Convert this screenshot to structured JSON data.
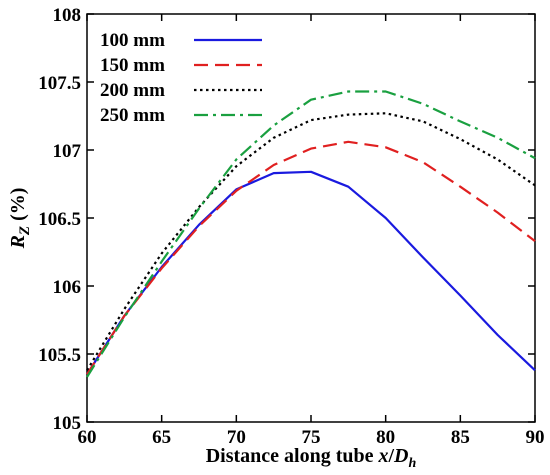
{
  "chart_data": {
    "type": "line",
    "xlabel": "Distance along tube x/D",
    "xlabel_parts": {
      "prefix": "Distance along tube ",
      "var_x": "x",
      "slash": "/",
      "var_d": "D",
      "subscript": "h"
    },
    "ylabel": "R_Z (%)",
    "ylabel_parts": {
      "var": "R",
      "subscript": "Z",
      "unit": " (%)"
    },
    "xlim": [
      60,
      90
    ],
    "ylim": [
      105,
      108
    ],
    "x_ticks": [
      60,
      65,
      70,
      75,
      80,
      85,
      90
    ],
    "y_ticks": [
      105,
      105.5,
      106,
      106.5,
      107,
      107.5,
      108
    ],
    "x_tick_labels": [
      "60",
      "65",
      "70",
      "75",
      "80",
      "85",
      "90"
    ],
    "y_tick_labels": [
      "105",
      "105.5",
      "106",
      "106.5",
      "107",
      "107.5",
      "108"
    ],
    "grid": false,
    "legend_position": "top-left",
    "series": [
      {
        "name": "100 mm",
        "color": "#1a1adf",
        "style": "solid",
        "x": [
          60,
          62.5,
          65,
          67.5,
          70,
          72.5,
          75,
          77.5,
          80,
          82.5,
          85,
          87.5,
          90
        ],
        "y": [
          105.35,
          105.78,
          106.14,
          106.45,
          106.71,
          106.83,
          106.84,
          106.73,
          106.5,
          106.21,
          105.93,
          105.64,
          105.38
        ]
      },
      {
        "name": "150 mm",
        "color": "#e02020",
        "style": "dashed",
        "x": [
          60,
          62.5,
          65,
          67.5,
          70,
          72.5,
          75,
          77.5,
          80,
          82.5,
          85,
          87.5,
          90
        ],
        "y": [
          105.35,
          105.78,
          106.13,
          106.44,
          106.7,
          106.89,
          107.01,
          107.06,
          107.02,
          106.91,
          106.73,
          106.54,
          106.33
        ]
      },
      {
        "name": "200 mm",
        "color": "#000000",
        "style": "dotted",
        "x": [
          60,
          62.5,
          65,
          67.5,
          70,
          72.5,
          75,
          77.5,
          80,
          82.5,
          85,
          87.5,
          90
        ],
        "y": [
          105.38,
          105.83,
          106.24,
          106.58,
          106.88,
          107.09,
          107.22,
          107.26,
          107.27,
          107.21,
          107.08,
          106.93,
          106.74
        ]
      },
      {
        "name": "250 mm",
        "color": "#1aa040",
        "style": "dashdot",
        "x": [
          60,
          62.5,
          65,
          67.5,
          70,
          72.5,
          75,
          77.5,
          80,
          82.5,
          85,
          87.5,
          90
        ],
        "y": [
          105.33,
          105.77,
          106.18,
          106.57,
          106.93,
          107.18,
          107.37,
          107.43,
          107.43,
          107.34,
          107.21,
          107.09,
          106.94
        ]
      }
    ]
  }
}
